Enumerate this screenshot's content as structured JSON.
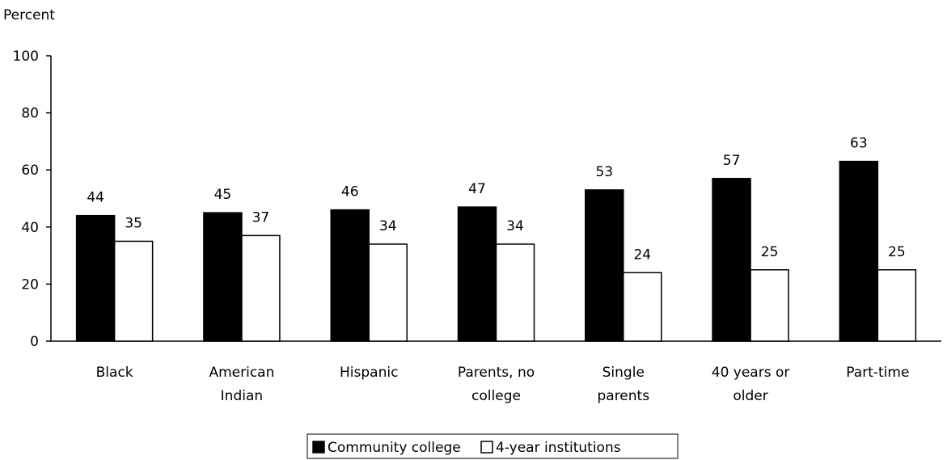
{
  "chart_data": {
    "type": "bar",
    "ylabel": "Percent",
    "ylim": [
      0,
      100
    ],
    "yticks": [
      0,
      20,
      40,
      60,
      80,
      100
    ],
    "grid": false,
    "legend_position": "bottom",
    "categories": [
      [
        "Black"
      ],
      [
        "American",
        "Indian"
      ],
      [
        "Hispanic"
      ],
      [
        "Parents, no",
        "college"
      ],
      [
        "Single",
        "parents"
      ],
      [
        "40 years or",
        "older"
      ],
      [
        "Part-time"
      ]
    ],
    "series": [
      {
        "name": "Community college",
        "color": "#000000",
        "values": [
          44,
          45,
          46,
          47,
          53,
          57,
          63
        ]
      },
      {
        "name": "4-year institutions",
        "color": "#ffffff",
        "values": [
          35,
          37,
          34,
          34,
          24,
          25,
          25
        ]
      }
    ]
  }
}
